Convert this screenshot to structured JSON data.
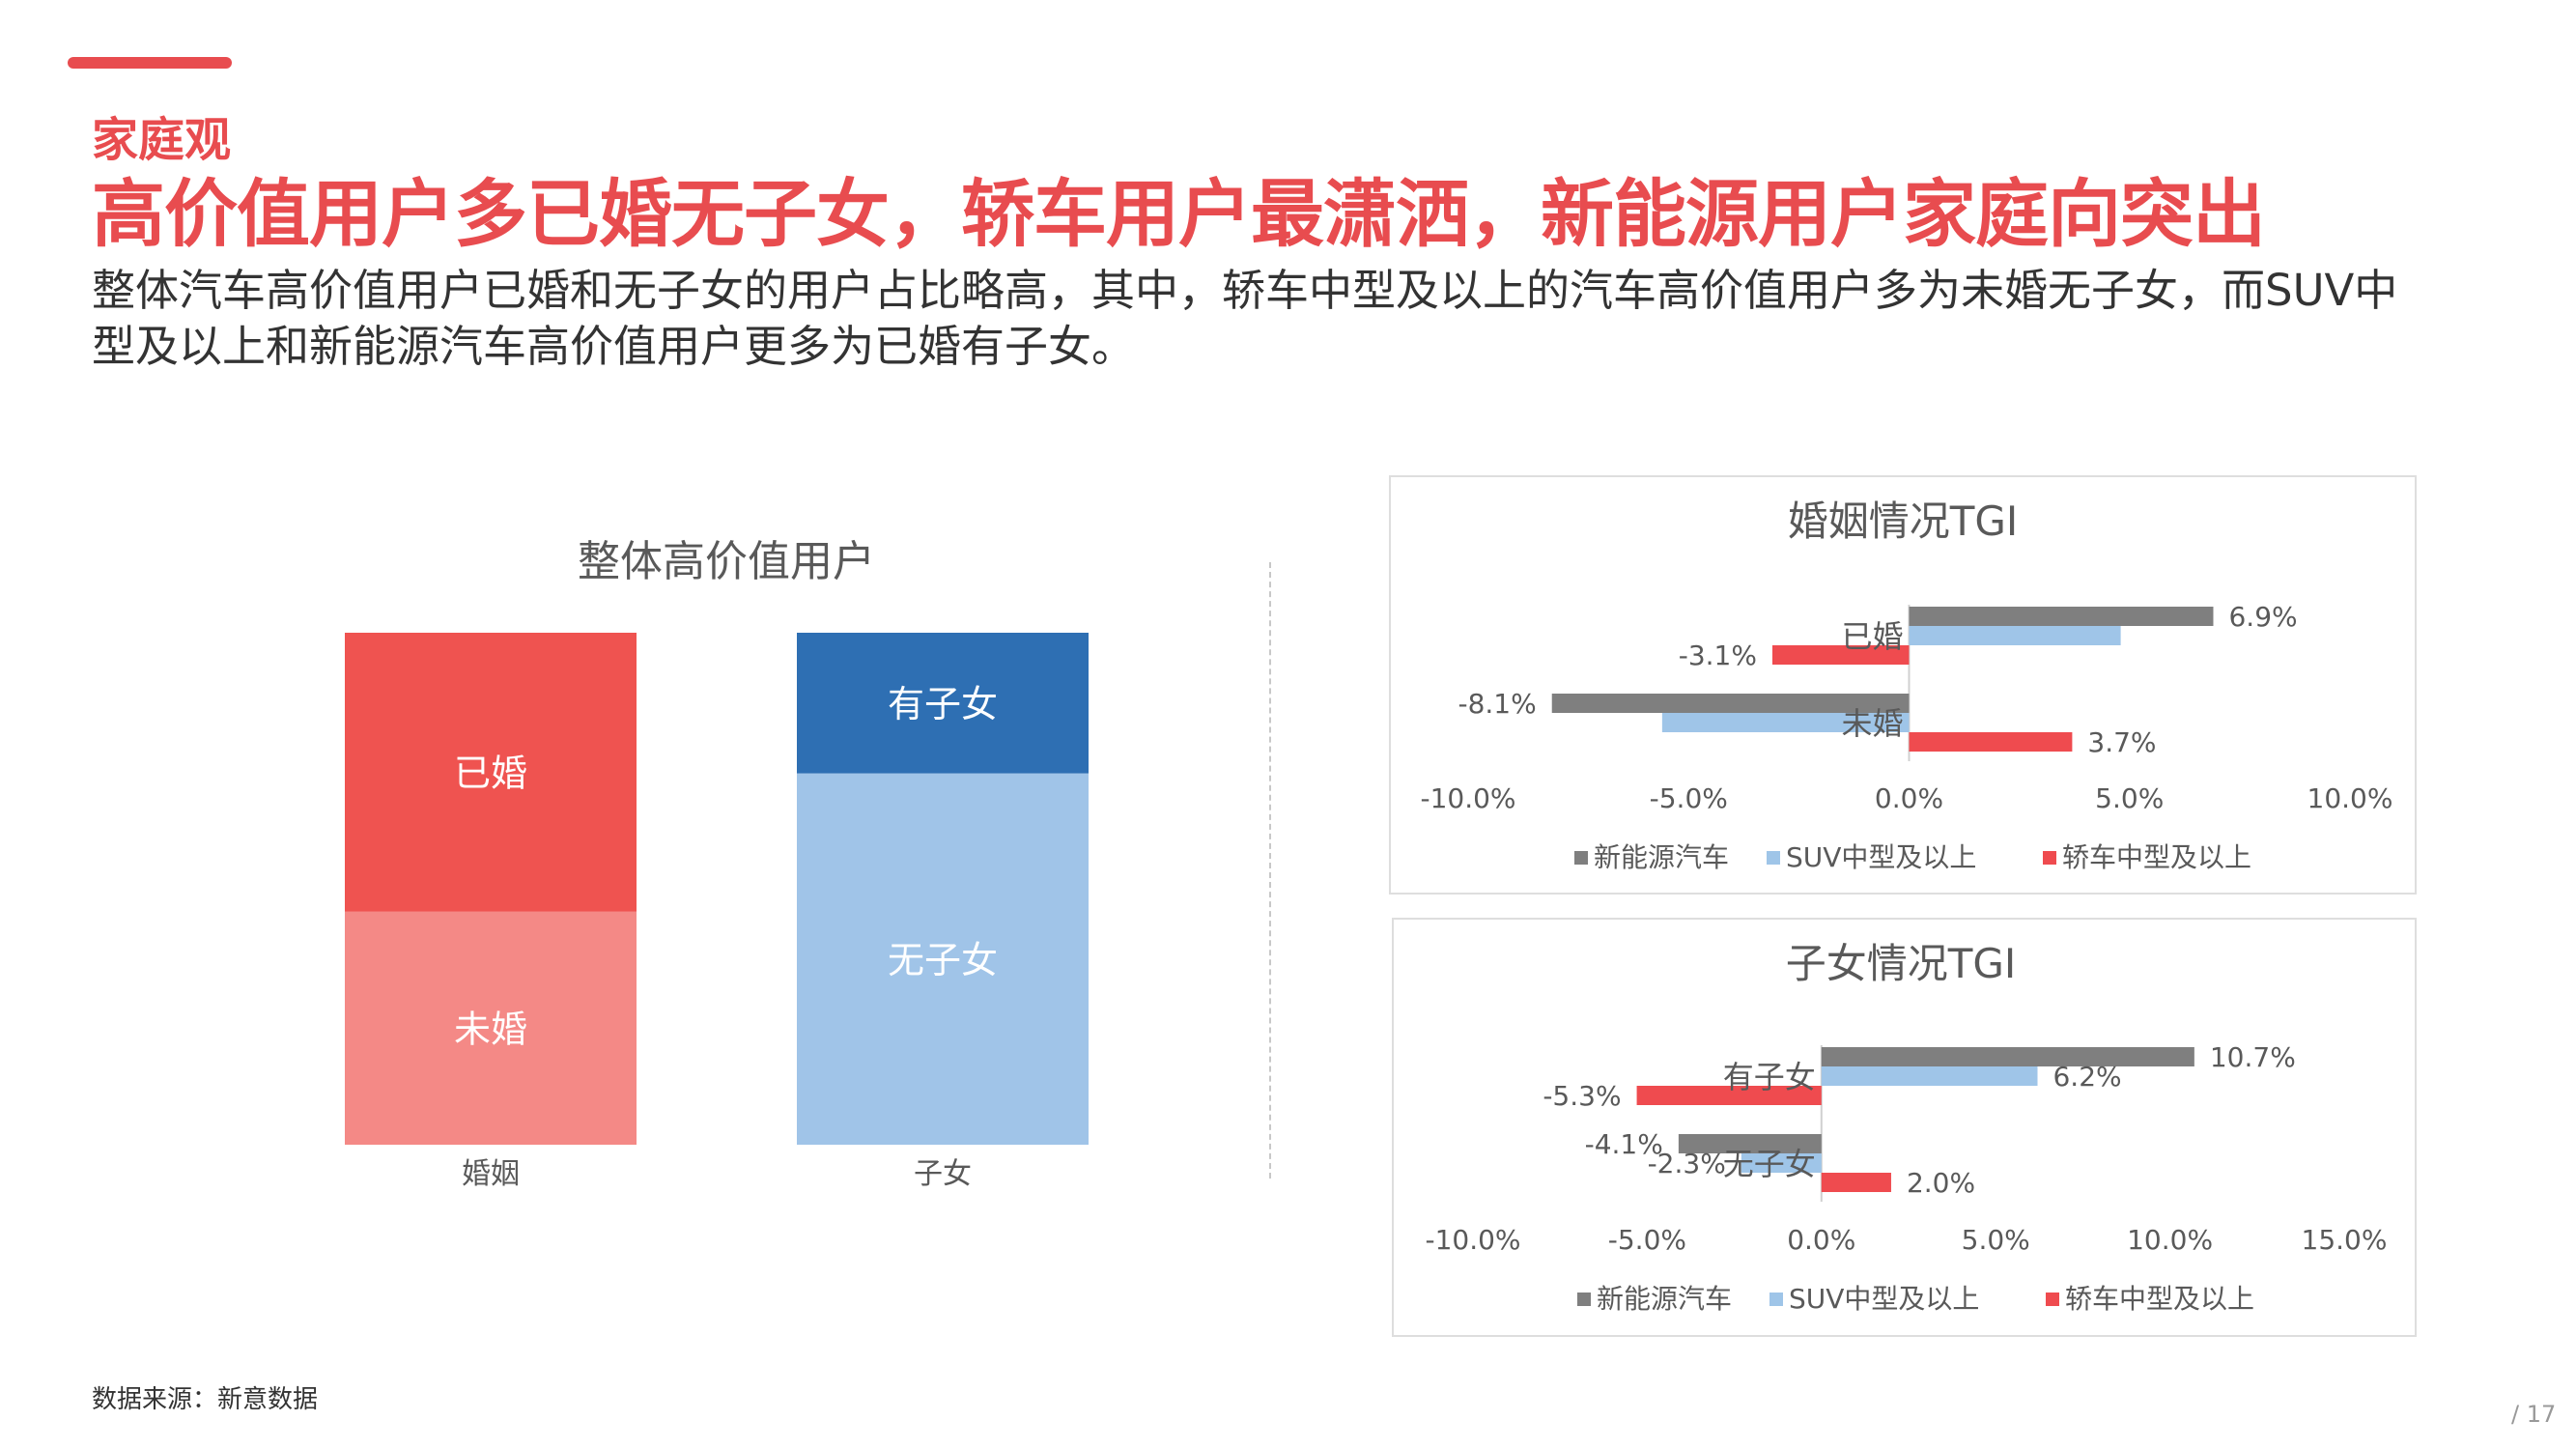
{
  "header": {
    "section": "家庭观",
    "headline": "高价值用户多已婚无子女，轿车用户最潇洒，新能源用户家庭向突出",
    "summary": "整体汽车高价值用户已婚和无子女的用户占比略高，其中，轿车中型及以上的汽车高价值用户多为未婚无子女，而SUV中型及以上和新能源汽车高价值用户更多为已婚有子女。"
  },
  "footer": {
    "source": "数据来源：新意数据",
    "page": "/ 17"
  },
  "chart_data": [
    {
      "type": "bar",
      "stacked": "percent",
      "title": "整体高价值用户",
      "categories": [
        "婚姻",
        "子女"
      ],
      "stacks": [
        {
          "category": "婚姻",
          "segments": [
            {
              "label": "已婚",
              "value": 54.5,
              "color": "#ef5350"
            },
            {
              "label": "未婚",
              "value": 45.5,
              "color": "#f48986"
            }
          ]
        },
        {
          "category": "子女",
          "segments": [
            {
              "label": "有子女",
              "value": 27.5,
              "color": "#2e6fb3"
            },
            {
              "label": "无子女",
              "value": 72.5,
              "color": "#a0c4e8"
            }
          ]
        }
      ]
    },
    {
      "type": "bar",
      "orientation": "horizontal",
      "title": "婚姻情况TGI",
      "categories": [
        "已婚",
        "未婚"
      ],
      "xlim": [
        -10,
        10
      ],
      "xticks": [
        -10,
        -5,
        0,
        5,
        10
      ],
      "xtick_labels": [
        "-10.0%",
        "-5.0%",
        "0.0%",
        "5.0%",
        "10.0%"
      ],
      "legend_position": "bottom",
      "series": [
        {
          "name": "新能源汽车",
          "color": "#7f7f7f",
          "values": [
            6.9,
            -8.1
          ],
          "labels": [
            "6.9%",
            "-8.1%"
          ]
        },
        {
          "name": "SUV中型及以上",
          "color": "#9fc5e8",
          "values": [
            4.8,
            -5.6
          ],
          "labels": [
            "",
            ""
          ]
        },
        {
          "name": "轿车中型及以上",
          "color": "#ef4b4f",
          "values": [
            -3.1,
            3.7
          ],
          "labels": [
            "-3.1%",
            "3.7%"
          ]
        }
      ]
    },
    {
      "type": "bar",
      "orientation": "horizontal",
      "title": "子女情况TGI",
      "categories": [
        "有子女",
        "无子女"
      ],
      "xlim": [
        -10,
        15
      ],
      "xticks": [
        -10,
        -5,
        0,
        5,
        10,
        15
      ],
      "xtick_labels": [
        "-10.0%",
        "-5.0%",
        "0.0%",
        "5.0%",
        "10.0%",
        "15.0%"
      ],
      "legend_position": "bottom",
      "series": [
        {
          "name": "新能源汽车",
          "color": "#7f7f7f",
          "values": [
            10.7,
            -4.1
          ],
          "labels": [
            "10.7%",
            "-4.1%"
          ]
        },
        {
          "name": "SUV中型及以上",
          "color": "#9fc5e8",
          "values": [
            6.2,
            -2.3
          ],
          "labels": [
            "6.2%",
            "-2.3%"
          ]
        },
        {
          "name": "轿车中型及以上",
          "color": "#ef4b4f",
          "values": [
            -5.3,
            2.0
          ],
          "labels": [
            "-5.3%",
            "2.0%"
          ]
        }
      ]
    }
  ]
}
